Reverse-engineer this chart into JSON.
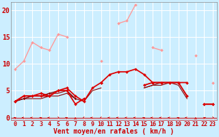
{
  "bg_color": "#cceeff",
  "grid_color": "#ffffff",
  "x_labels": [
    "0",
    "1",
    "2",
    "3",
    "4",
    "5",
    "6",
    "7",
    "8",
    "9",
    "10",
    "11",
    "12",
    "13",
    "14",
    "15",
    "16",
    "17",
    "18",
    "19",
    "20",
    "21",
    "22",
    "23"
  ],
  "xlabel": "Vent moyen/en rafales ( km/h )",
  "ylim": [
    -0.5,
    21.5
  ],
  "xlim": [
    -0.5,
    23.5
  ],
  "yticks": [
    0,
    5,
    10,
    15,
    20
  ],
  "series": [
    {
      "y": [
        9.0,
        10.5,
        14.0,
        13.0,
        12.5,
        15.5,
        15.0,
        null,
        null,
        null,
        10.5,
        null,
        17.5,
        18.0,
        21.0,
        null,
        13.0,
        12.5,
        null,
        null,
        null,
        11.5,
        null,
        6.5
      ],
      "color": "#ff9999",
      "lw": 1.0,
      "marker": "D",
      "ms": 2.0,
      "zorder": 2
    },
    {
      "y": [
        3.0,
        4.0,
        4.0,
        4.5,
        4.0,
        5.0,
        5.0,
        2.5,
        3.5,
        null,
        6.5,
        8.0,
        8.5,
        8.5,
        9.0,
        8.0,
        6.5,
        6.5,
        6.5,
        6.5,
        6.5,
        null,
        2.5,
        2.5
      ],
      "color": "#dd0000",
      "lw": 1.3,
      "marker": "D",
      "ms": 2.0,
      "zorder": 4
    },
    {
      "y": [
        3.0,
        4.0,
        4.0,
        4.0,
        4.0,
        5.0,
        5.5,
        4.0,
        3.0,
        5.5,
        6.5,
        null,
        null,
        null,
        null,
        6.0,
        6.5,
        6.5,
        6.5,
        6.5,
        4.0,
        null,
        2.5,
        2.5
      ],
      "color": "#dd0000",
      "lw": 1.3,
      "marker": "D",
      "ms": 2.0,
      "zorder": 4
    },
    {
      "y": [
        3.0,
        3.5,
        4.0,
        4.0,
        4.5,
        5.0,
        5.0,
        3.5,
        null,
        null,
        null,
        null,
        null,
        null,
        null,
        6.0,
        6.5,
        6.5,
        6.5,
        6.5,
        4.0,
        null,
        2.5,
        2.5
      ],
      "color": "#880000",
      "lw": 0.8,
      "marker": "D",
      "ms": 1.5,
      "zorder": 3
    },
    {
      "y": [
        3.0,
        3.5,
        4.0,
        4.0,
        4.5,
        4.5,
        5.0,
        3.5,
        null,
        null,
        null,
        null,
        null,
        null,
        null,
        5.5,
        6.0,
        6.5,
        6.5,
        6.5,
        4.0,
        null,
        2.5,
        2.5
      ],
      "color": "#880000",
      "lw": 0.8,
      "marker": null,
      "ms": 0,
      "zorder": 3
    },
    {
      "y": [
        3.0,
        3.5,
        3.5,
        3.5,
        4.0,
        4.0,
        4.5,
        3.5,
        3.0,
        5.0,
        5.5,
        null,
        null,
        null,
        null,
        5.5,
        6.0,
        6.0,
        6.5,
        6.0,
        3.5,
        null,
        2.5,
        2.5
      ],
      "color": "#880000",
      "lw": 0.8,
      "marker": null,
      "ms": 0,
      "zorder": 3
    }
  ],
  "arrow_angles": [
    225,
    270,
    270,
    225,
    270,
    45,
    225,
    180,
    315,
    270,
    315,
    270,
    270,
    270,
    270,
    225,
    270,
    270,
    270,
    225,
    270,
    180,
    135,
    45
  ],
  "axis_fontsize": 6,
  "label_fontsize": 7
}
